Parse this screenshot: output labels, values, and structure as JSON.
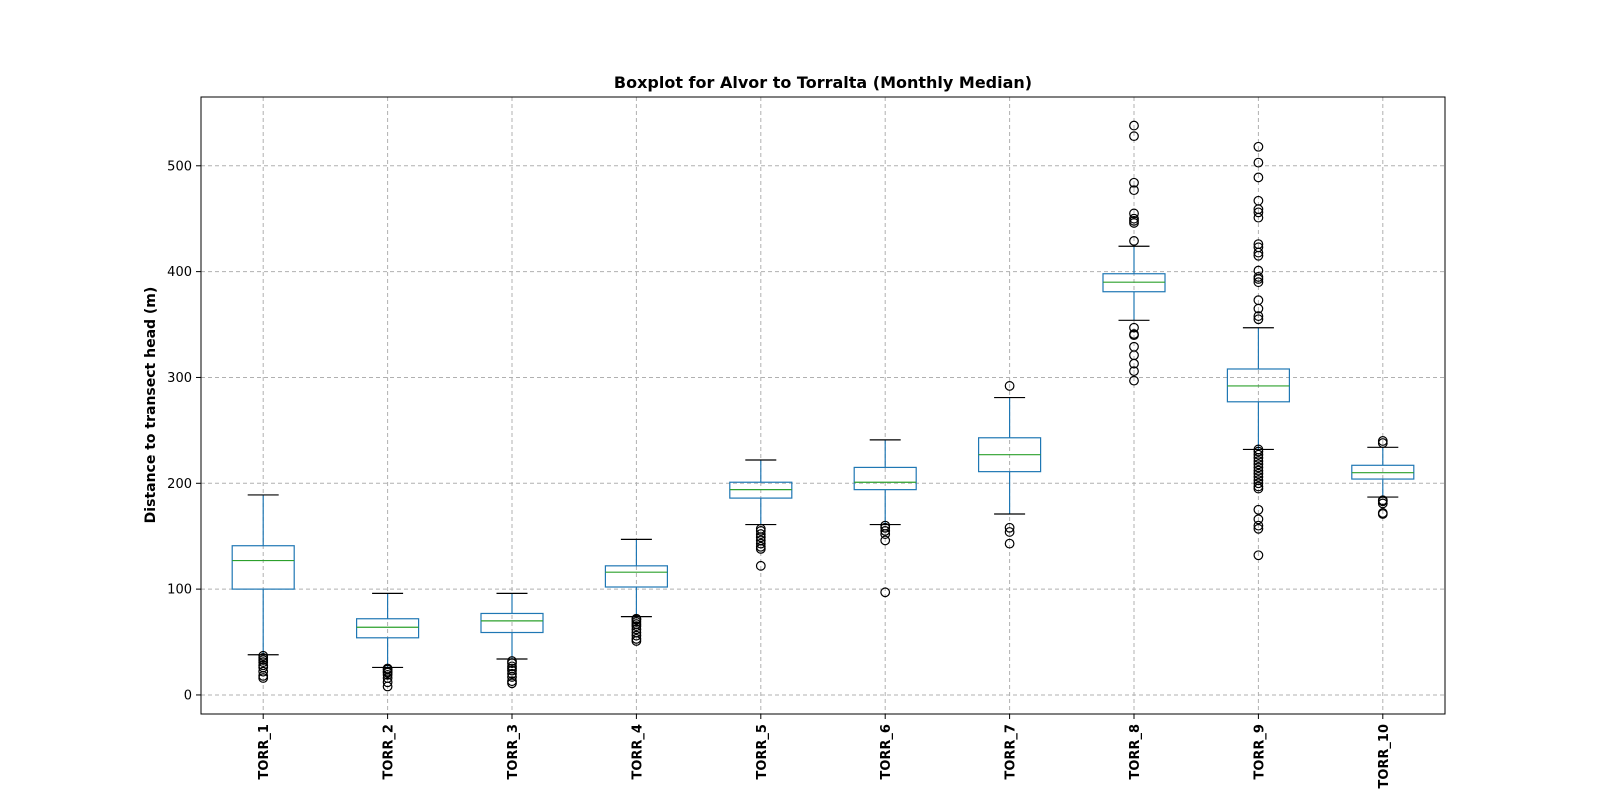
{
  "chart_data": {
    "type": "boxplot",
    "title": "Boxplot for Alvor to Torralta (Monthly Median)",
    "xlabel": "",
    "ylabel": "Distance to transect head (m)",
    "ylim": [
      -18,
      565
    ],
    "yticks": [
      0,
      100,
      200,
      300,
      400,
      500
    ],
    "grid": true,
    "categories": [
      "TORR_1",
      "TORR_2",
      "TORR_3",
      "TORR_4",
      "TORR_5",
      "TORR_6",
      "TORR_7",
      "TORR_8",
      "TORR_9",
      "TORR_10"
    ],
    "boxes": [
      {
        "name": "TORR_1",
        "whislo": 38,
        "q1": 100,
        "med": 127,
        "q3": 141,
        "whishi": 189,
        "fliers": [
          16,
          18,
          22,
          26,
          28,
          31,
          33,
          35,
          37
        ]
      },
      {
        "name": "TORR_2",
        "whislo": 26,
        "q1": 54,
        "med": 64,
        "q3": 72,
        "whishi": 96,
        "fliers": [
          8,
          12,
          16,
          19,
          21,
          22,
          24,
          25
        ]
      },
      {
        "name": "TORR_3",
        "whislo": 34,
        "q1": 59,
        "med": 70,
        "q3": 77,
        "whishi": 96,
        "fliers": [
          11,
          13,
          17,
          20,
          23,
          25,
          27,
          30,
          32
        ]
      },
      {
        "name": "TORR_4",
        "whislo": 74,
        "q1": 102,
        "med": 116,
        "q3": 122,
        "whishi": 147,
        "fliers": [
          51,
          53,
          56,
          59,
          62,
          65,
          67,
          69,
          71,
          72
        ]
      },
      {
        "name": "TORR_5",
        "whislo": 161,
        "q1": 186,
        "med": 194,
        "q3": 201,
        "whishi": 222,
        "fliers": [
          122,
          138,
          140,
          143,
          146,
          149,
          152,
          155,
          157
        ]
      },
      {
        "name": "TORR_6",
        "whislo": 161,
        "q1": 194,
        "med": 201,
        "q3": 215,
        "whishi": 241,
        "fliers": [
          97,
          146,
          152,
          155,
          158,
          160
        ]
      },
      {
        "name": "TORR_7",
        "whislo": 171,
        "q1": 211,
        "med": 227,
        "q3": 243,
        "whishi": 281,
        "fliers": [
          143,
          154,
          158,
          292
        ]
      },
      {
        "name": "TORR_8",
        "whislo": 354,
        "q1": 381,
        "med": 390,
        "q3": 398,
        "whishi": 424,
        "fliers": [
          297,
          306,
          313,
          321,
          329,
          340,
          341,
          347,
          429,
          446,
          448,
          450,
          455,
          477,
          484,
          528,
          538
        ]
      },
      {
        "name": "TORR_9",
        "whislo": 232,
        "q1": 277,
        "med": 292,
        "q3": 308,
        "whishi": 347,
        "fliers": [
          132,
          157,
          160,
          166,
          175,
          195,
          197,
          200,
          203,
          206,
          209,
          212,
          215,
          218,
          221,
          224,
          227,
          230,
          232,
          355,
          358,
          365,
          373,
          390,
          393,
          395,
          401,
          415,
          418,
          423,
          426,
          451,
          456,
          459,
          467,
          489,
          503,
          518
        ]
      },
      {
        "name": "TORR_10",
        "whislo": 187,
        "q1": 204,
        "med": 210,
        "q3": 217,
        "whishi": 234,
        "fliers": [
          171,
          172,
          181,
          183,
          184,
          238,
          240
        ]
      }
    ]
  }
}
